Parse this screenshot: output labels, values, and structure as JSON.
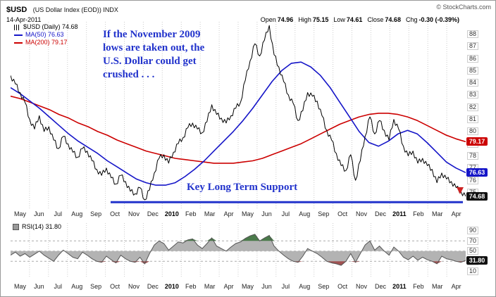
{
  "header": {
    "symbol": "$USD",
    "description": "(US Dollar Index (EOD)) INDX",
    "copyright": "© StockCharts.com",
    "date": "14-Apr-2011",
    "quote": [
      {
        "label": "Open",
        "value": "74.96"
      },
      {
        "label": "High",
        "value": "75.15"
      },
      {
        "label": "Low",
        "value": "74.61"
      },
      {
        "label": "Close",
        "value": "74.68"
      },
      {
        "label": "Chg",
        "value": "-0.30 (-0.39%)"
      }
    ]
  },
  "legend": {
    "price": "$USD (Daily) 74.68",
    "ma50": "MA(50) 76.63",
    "ma200": "MA(200) 79.17"
  },
  "annotations": {
    "warning": "If the November 2009\nlows are taken out, the\nU.S. Dollar could get\ncrushed . . .",
    "support_label": "Key Long Term Support"
  },
  "tags": {
    "ma200": {
      "text": "79.17",
      "color": "#cc0000",
      "value": 79.17
    },
    "ma50": {
      "text": "76.63",
      "color": "#1515c8",
      "value": 76.63
    },
    "last": {
      "text": "74.68",
      "color": "#111111",
      "value": 74.68
    }
  },
  "rsi_panel": {
    "legend": "RSI(14) 31.80",
    "tag": {
      "text": "31.80",
      "color": "#111111",
      "value": 31.8
    }
  },
  "colors": {
    "price": "#000000",
    "ma50": "#1515c8",
    "ma200": "#cc0000",
    "annotation": "#2233cc",
    "support_line": "#2233cc",
    "rsi_line": "#555555",
    "rsi_fill": "#b3b3b3",
    "rsi_over": "#4a7a4a",
    "rsi_under": "#a05252"
  },
  "chart_data": [
    {
      "type": "line",
      "title": "$USD US Dollar Index (EOD) Daily with MA(50) and MA(200)",
      "x_labels": [
        "May",
        "Jun",
        "Jul",
        "Aug",
        "Sep",
        "Oct",
        "Nov",
        "Dec",
        "2010",
        "Feb",
        "Mar",
        "Apr",
        "May",
        "Jun",
        "Jul",
        "Aug",
        "Sep",
        "Oct",
        "Nov",
        "Dec",
        "2011",
        "Feb",
        "Mar",
        "Apr"
      ],
      "ylim": [
        73.7,
        89.0
      ],
      "yticks": [
        88,
        87,
        86,
        85,
        84,
        83,
        82,
        81,
        80,
        79,
        78,
        77,
        76,
        75
      ],
      "grid": "vertical-monthly",
      "legend_position": "top-left",
      "support_line": {
        "value": 74.2,
        "x_start_frac": 0.22
      },
      "series": [
        {
          "name": "$USD (Daily)",
          "last": 74.68,
          "values": [
            84.6,
            83.9,
            83.2,
            82.4,
            81.0,
            80.2,
            81.3,
            80.0,
            80.4,
            79.3,
            78.6,
            79.6,
            79.0,
            78.3,
            77.9,
            78.6,
            78.4,
            77.6,
            76.9,
            76.4,
            77.0,
            76.2,
            75.7,
            76.4,
            75.9,
            75.1,
            74.9,
            75.4,
            74.4,
            75.2,
            76.6,
            77.8,
            78.1,
            77.4,
            78.3,
            79.0,
            79.5,
            80.3,
            80.7,
            80.2,
            79.9,
            80.8,
            82.2,
            81.4,
            81.1,
            80.7,
            81.3,
            81.9,
            82.4,
            84.2,
            85.8,
            87.2,
            86.2,
            87.5,
            88.7,
            86.3,
            85.3,
            84.1,
            83.0,
            82.3,
            80.9,
            81.7,
            83.2,
            82.9,
            82.5,
            81.3,
            80.1,
            79.3,
            78.2,
            77.2,
            76.8,
            78.1,
            76.0,
            77.6,
            79.6,
            81.2,
            79.8,
            80.9,
            80.1,
            79.3,
            81.0,
            80.2,
            78.8,
            78.0,
            78.4,
            77.4,
            77.8,
            77.2,
            76.9,
            75.8,
            76.6,
            76.1,
            75.9,
            75.4,
            75.1,
            74.68
          ]
        },
        {
          "name": "MA(50)",
          "last": 76.63,
          "values": [
            83.6,
            83.1,
            82.5,
            81.9,
            81.2,
            80.5,
            79.8,
            79.2,
            78.7,
            78.2,
            77.6,
            77.1,
            76.6,
            76.1,
            75.8,
            75.6,
            75.6,
            75.8,
            76.3,
            76.9,
            77.6,
            78.4,
            79.2,
            80.0,
            80.9,
            81.9,
            83.0,
            84.1,
            85.0,
            85.6,
            85.7,
            85.3,
            84.6,
            83.6,
            82.4,
            81.2,
            80.0,
            79.1,
            78.8,
            79.2,
            79.8,
            80.1,
            79.8,
            79.1,
            78.3,
            77.5,
            77.0,
            76.63
          ]
        },
        {
          "name": "MA(200)",
          "last": 79.17,
          "values": [
            82.9,
            82.7,
            82.4,
            82.1,
            81.8,
            81.4,
            81.1,
            80.7,
            80.4,
            80.0,
            79.7,
            79.3,
            79.0,
            78.7,
            78.4,
            78.2,
            78.0,
            77.8,
            77.7,
            77.6,
            77.5,
            77.4,
            77.4,
            77.4,
            77.5,
            77.6,
            77.8,
            78.1,
            78.4,
            78.7,
            79.0,
            79.4,
            79.8,
            80.2,
            80.6,
            80.9,
            81.2,
            81.4,
            81.5,
            81.5,
            81.4,
            81.2,
            80.9,
            80.5,
            80.1,
            79.7,
            79.4,
            79.17
          ]
        }
      ]
    },
    {
      "type": "area",
      "title": "RSI(14)",
      "ylim": [
        0,
        105
      ],
      "yticks": [
        90,
        70,
        50,
        30,
        10
      ],
      "guides": [
        70,
        50,
        30
      ],
      "last": 31.8,
      "values": [
        42,
        48,
        40,
        45,
        38,
        44,
        50,
        42,
        36,
        30,
        42,
        52,
        45,
        38,
        35,
        48,
        42,
        35,
        30,
        28,
        40,
        33,
        27,
        42,
        35,
        30,
        28,
        38,
        25,
        45,
        62,
        70,
        65,
        52,
        60,
        68,
        66,
        72,
        74,
        62,
        55,
        65,
        76,
        60,
        55,
        50,
        58,
        65,
        68,
        75,
        80,
        83,
        70,
        76,
        81,
        60,
        50,
        42,
        35,
        30,
        28,
        40,
        55,
        50,
        45,
        38,
        30,
        27,
        25,
        22,
        30,
        45,
        28,
        45,
        62,
        70,
        52,
        60,
        50,
        42,
        58,
        50,
        38,
        33,
        40,
        32,
        38,
        33,
        30,
        25,
        40,
        35,
        33,
        30,
        28,
        31.8
      ]
    }
  ]
}
